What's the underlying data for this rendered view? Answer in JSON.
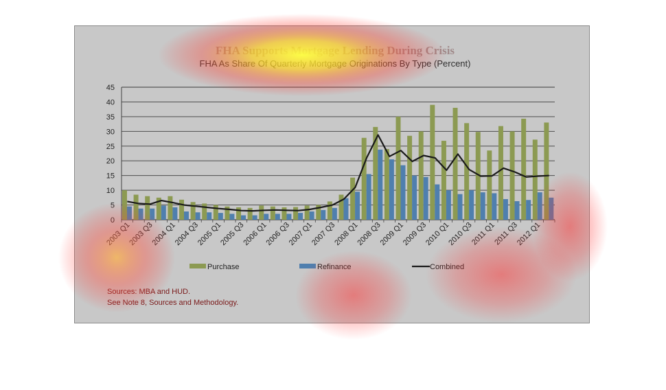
{
  "chart_data": {
    "type": "bar",
    "title": "FHA Supports Mortgage Lending During Crisis",
    "subtitle": "FHA As Share Of Quarterly Mortgage Originations By Type (Percent)",
    "ylim": [
      0,
      45
    ],
    "yticks": [
      "0",
      "5",
      "10",
      "15",
      "20",
      "25",
      "30",
      "35",
      "40",
      "45"
    ],
    "xtick_labels": [
      "2003 Q1",
      "2003 Q3",
      "2004 Q1",
      "2004 Q3",
      "2005 Q1",
      "2005 Q3",
      "2006 Q1",
      "2006 Q3",
      "2007 Q1",
      "2007 Q3",
      "2008 Q1",
      "2008 Q3",
      "2009 Q1",
      "2009 Q3",
      "2010 Q1",
      "2010 Q3",
      "2011 Q1",
      "2011 Q3",
      "2012 Q1"
    ],
    "categories": [
      "2003 Q1",
      "2003 Q2",
      "2003 Q3",
      "2003 Q4",
      "2004 Q1",
      "2004 Q2",
      "2004 Q3",
      "2004 Q4",
      "2005 Q1",
      "2005 Q2",
      "2005 Q3",
      "2005 Q4",
      "2006 Q1",
      "2006 Q2",
      "2006 Q3",
      "2006 Q4",
      "2007 Q1",
      "2007 Q2",
      "2007 Q3",
      "2007 Q4",
      "2008 Q1",
      "2008 Q2",
      "2008 Q3",
      "2008 Q4",
      "2009 Q1",
      "2009 Q2",
      "2009 Q3",
      "2009 Q4",
      "2010 Q1",
      "2010 Q2",
      "2010 Q3",
      "2010 Q4",
      "2011 Q1",
      "2011 Q2",
      "2011 Q3",
      "2011 Q4",
      "2012 Q1",
      "2012 Q2"
    ],
    "series": [
      {
        "name": "Purchase",
        "kind": "bar",
        "color": "#8c9a52",
        "values": [
          10,
          8.5,
          8,
          7.5,
          8,
          6.8,
          6,
          5.5,
          5,
          4.5,
          4.2,
          4,
          4.8,
          4.5,
          4.2,
          4.3,
          4.8,
          5,
          6.2,
          8.5,
          14.3,
          27.8,
          31.5,
          24,
          35,
          28.5,
          30,
          39,
          26.8,
          38,
          32.8,
          29.8,
          23.5,
          31.8,
          30,
          34.3,
          27.2,
          33
        ]
      },
      {
        "name": "Refinance",
        "kind": "bar",
        "color": "#4f7fae",
        "values": [
          4.5,
          3.8,
          3.8,
          4.8,
          4.2,
          2.8,
          2.5,
          2.5,
          2.3,
          2,
          1.5,
          1.5,
          2,
          2,
          2,
          2.3,
          2.8,
          3.3,
          4,
          7.3,
          9.5,
          15.5,
          23.8,
          20.5,
          18.5,
          15,
          14.5,
          12,
          10,
          8.7,
          10,
          9.3,
          9,
          7,
          6.3,
          6.7,
          9.3,
          7.5
        ]
      },
      {
        "name": "Combined",
        "kind": "line",
        "color": "#1a1a1a",
        "values": [
          6.2,
          5.5,
          5.3,
          6.5,
          5.8,
          5,
          4.6,
          4.2,
          3.8,
          3.5,
          3.1,
          3,
          3.2,
          3.3,
          3.2,
          3.1,
          3.5,
          4.2,
          5,
          7,
          11,
          21,
          28.8,
          21.5,
          23.5,
          19.8,
          21.8,
          21,
          16.8,
          22.3,
          17,
          14.8,
          14.9,
          17.5,
          16.2,
          14.5,
          14.8,
          15
        ]
      }
    ],
    "legend_position": "bottom",
    "grid": true
  },
  "sources": {
    "line1": "Sources:  MBA and HUD.",
    "line2": "See Note 8, Sources and Methodology."
  }
}
